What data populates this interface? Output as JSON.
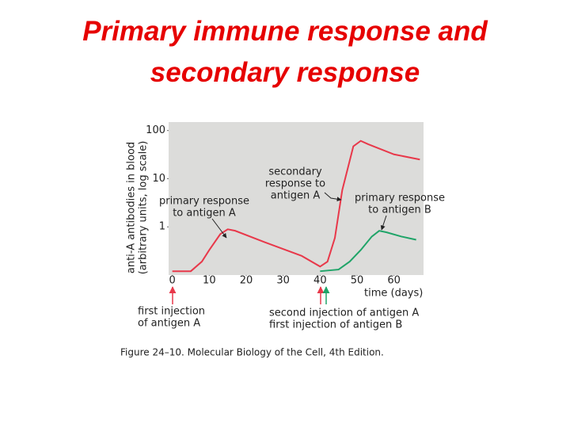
{
  "chart_data": {
    "type": "line",
    "title": "Primary immune response and secondary response",
    "y_label": [
      "anti-A antibodies in blood",
      "(arbitrary units, log scale)"
    ],
    "x_label": "time (days)",
    "caption": "Figure 24–10. Molecular Biology of the Cell, 4th Edition.",
    "yscale": "log",
    "ylim": [
      0.1,
      150
    ],
    "yticks": [
      1,
      10,
      100
    ],
    "xlim": [
      -1,
      68
    ],
    "xticks": [
      0,
      10,
      20,
      30,
      40,
      50,
      60
    ],
    "background": "#dcdcda",
    "series": [
      {
        "color": "#e8384a",
        "x": [
          0,
          5,
          8,
          10,
          13,
          15,
          17,
          25,
          35,
          40,
          42,
          44,
          46,
          49,
          51,
          53,
          60,
          67
        ],
        "values": [
          0.12,
          0.12,
          0.19,
          0.33,
          0.71,
          0.89,
          0.83,
          0.48,
          0.25,
          0.15,
          0.19,
          0.59,
          5.8,
          47,
          61,
          52,
          32,
          25
        ]
      },
      {
        "color": "#1fa468",
        "x": [
          40,
          45,
          48,
          51,
          54,
          56,
          58,
          62,
          66
        ],
        "values": [
          0.12,
          0.13,
          0.19,
          0.33,
          0.63,
          0.83,
          0.77,
          0.63,
          0.54
        ]
      }
    ],
    "annotations": [
      {
        "lines": [
          "primary response",
          "to antigen A"
        ]
      },
      {
        "lines": [
          "secondary",
          "response to",
          "antigen A"
        ]
      },
      {
        "lines": [
          "primary response",
          "to antigen B"
        ]
      },
      {
        "lines": [
          "first injection",
          "of antigen A"
        ]
      },
      {
        "lines": [
          "second injection of antigen A",
          "first injection of antigen B"
        ]
      }
    ]
  }
}
